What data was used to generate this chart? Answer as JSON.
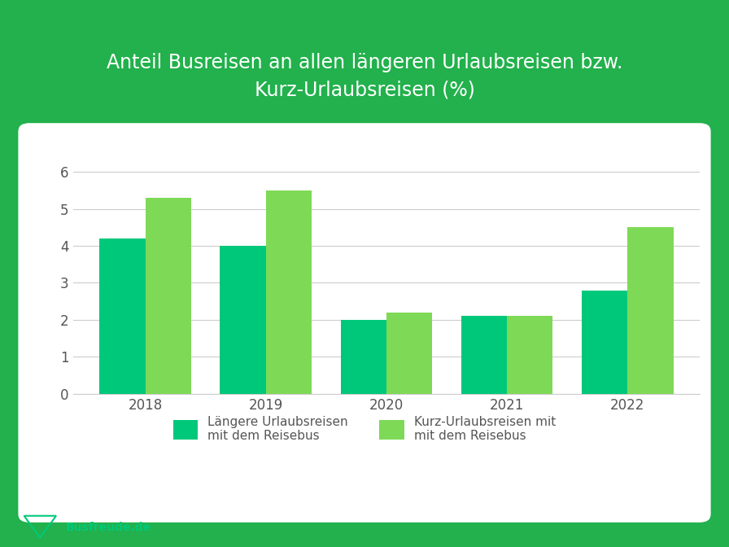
{
  "title_line1": "Anteil Busreisen an allen längeren Urlaubsreisen bzw.",
  "title_line2": "Kurz-Urlaubsreisen (%)",
  "years": [
    2018,
    2019,
    2020,
    2021,
    2022
  ],
  "laengere": [
    4.2,
    4.0,
    2.0,
    2.1,
    2.8
  ],
  "kurz": [
    5.3,
    5.5,
    2.2,
    2.1,
    4.5
  ],
  "color_laengere": "#00C87A",
  "color_kurz": "#7ED957",
  "background_outer": "#22B14C",
  "background_chart": "#FFFFFF",
  "title_color": "#FFFFFF",
  "yticks": [
    0,
    1,
    2,
    3,
    4,
    5,
    6
  ],
  "ylim": [
    0,
    6.8
  ],
  "bar_width": 0.38,
  "legend_label_1": "Längere Urlaubsreisen\nmit dem Reisebus",
  "legend_label_2": "Kurz-Urlaubsreisen mit\nmit dem Reisebus",
  "axis_tick_color": "#555555",
  "grid_color": "#CCCCCC",
  "title_fontsize": 17,
  "tick_fontsize": 12
}
